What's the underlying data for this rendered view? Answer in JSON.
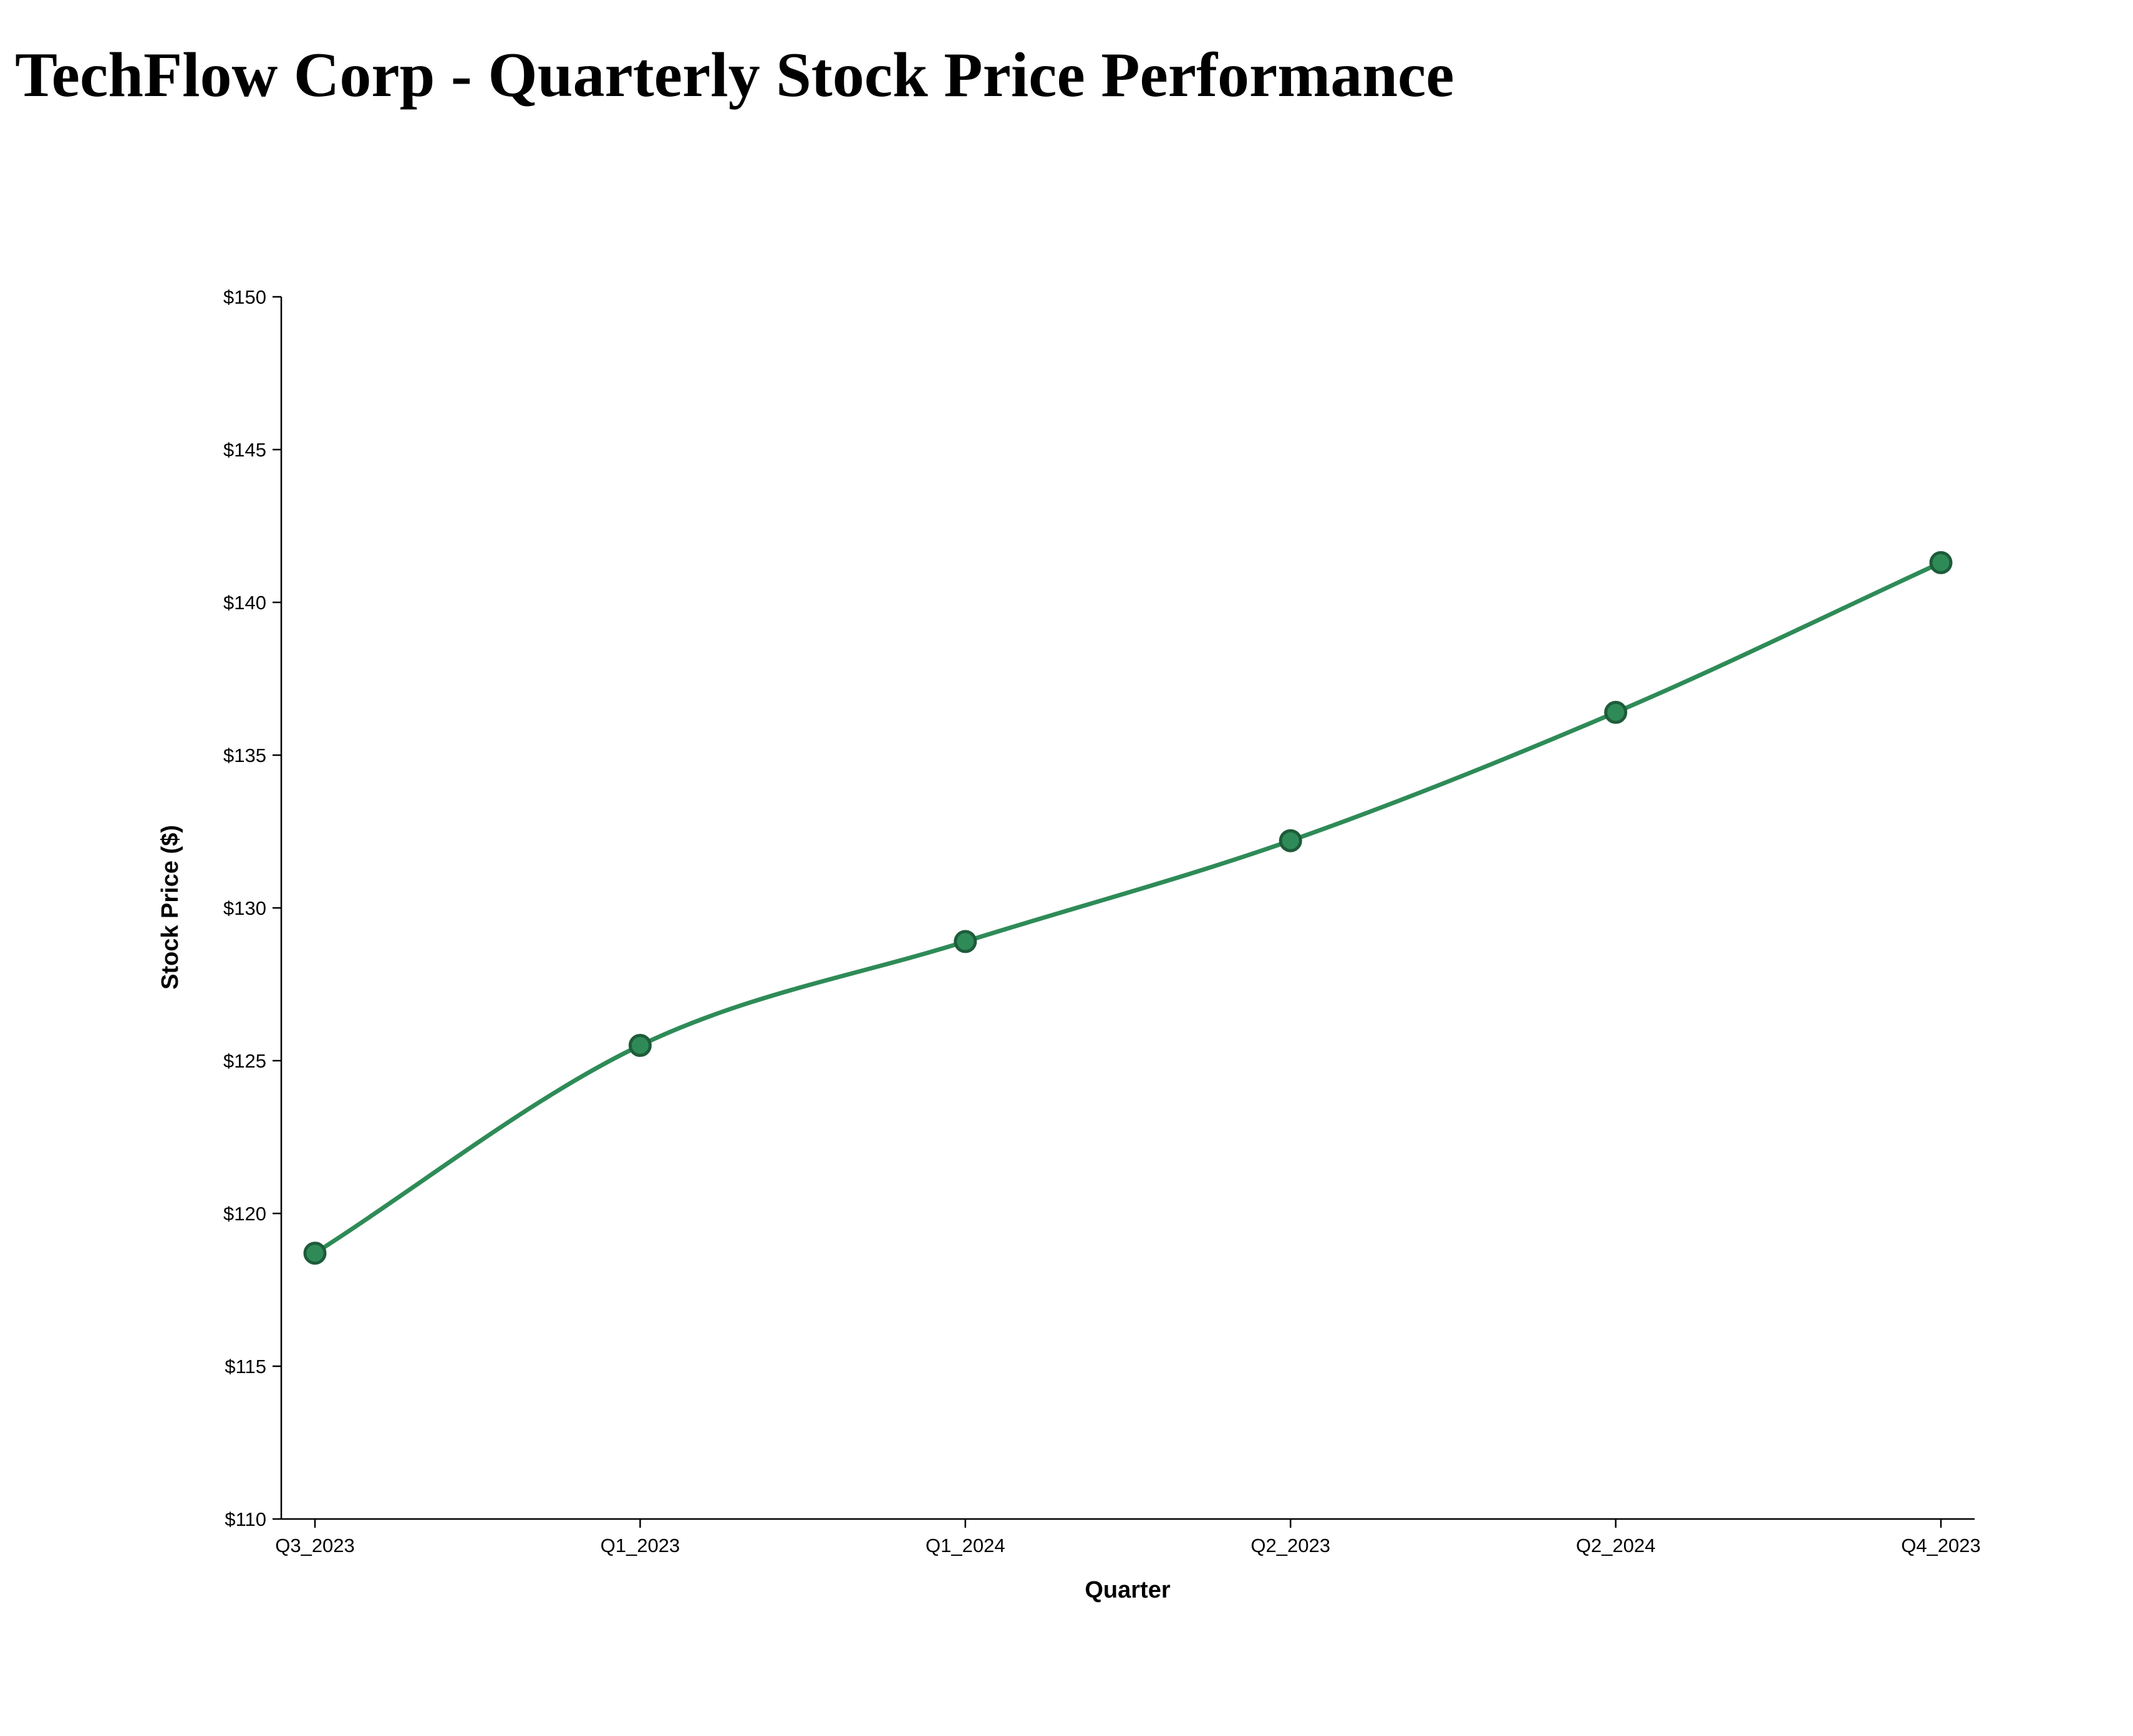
{
  "chart_data": {
    "type": "line",
    "title": "TechFlow Corp - Quarterly Stock Price Performance",
    "xlabel": "Quarter",
    "ylabel": "Stock Price ($)",
    "categories": [
      "Q3_2023",
      "Q1_2023",
      "Q1_2024",
      "Q2_2023",
      "Q2_2024",
      "Q4_2023"
    ],
    "series": [
      {
        "values": [
          118.7,
          125.5,
          128.9,
          132.2,
          136.4,
          141.3
        ]
      }
    ],
    "ylim": [
      110,
      150
    ],
    "yticks": [
      110,
      115,
      120,
      125,
      130,
      135,
      140,
      145,
      150
    ],
    "ytick_labels": [
      "$110",
      "$115",
      "$120",
      "$125",
      "$130",
      "$135",
      "$140",
      "$145",
      "$150"
    ],
    "grid": false,
    "legend": "none",
    "colors": {
      "line": "#2e8b57",
      "marker_fill": "#2e8b57",
      "marker_stroke": "#1e5c3a"
    }
  }
}
